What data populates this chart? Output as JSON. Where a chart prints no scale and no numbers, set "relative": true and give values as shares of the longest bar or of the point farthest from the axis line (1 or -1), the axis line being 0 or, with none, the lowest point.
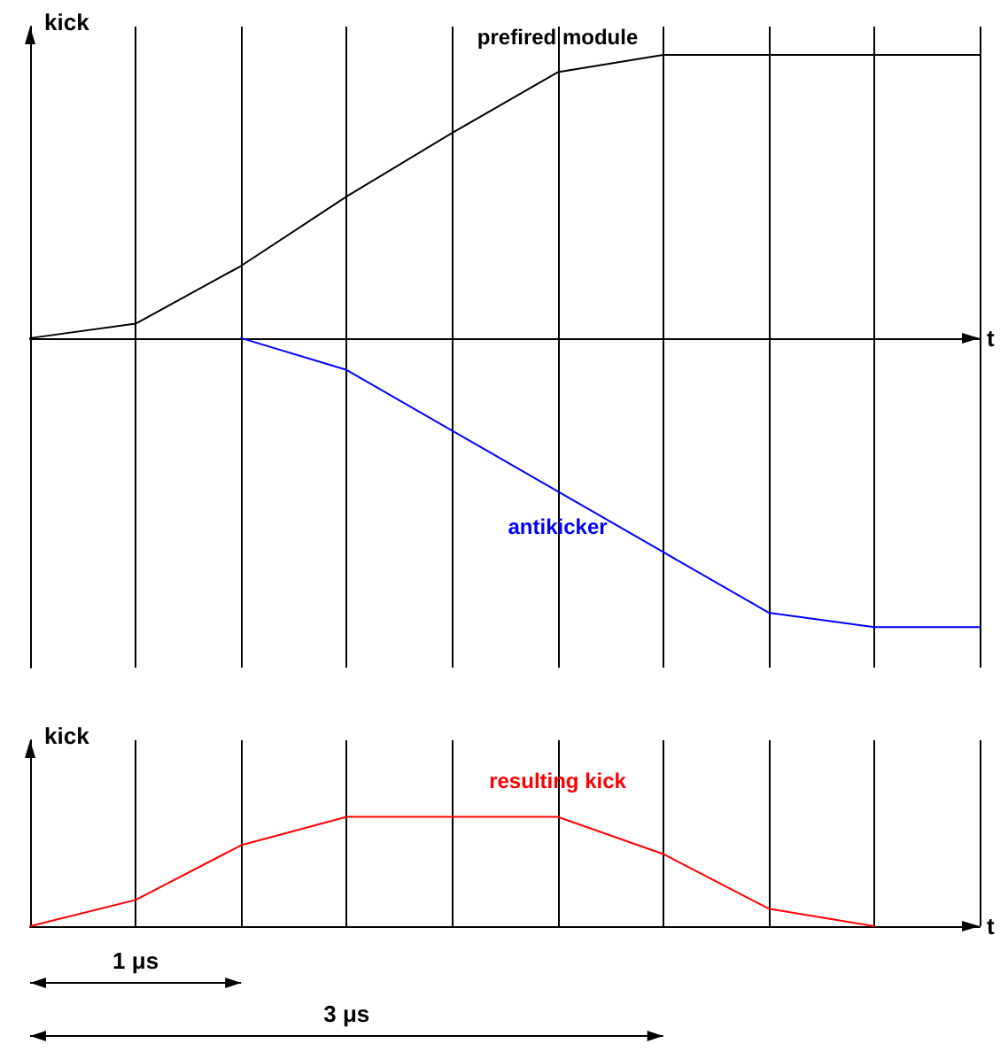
{
  "chart_data": [
    {
      "type": "line",
      "relative": true,
      "xlabel": "t",
      "ylabel": "kick",
      "categories": [
        null,
        null,
        null,
        null,
        null,
        null,
        null,
        null,
        null,
        null
      ],
      "grid": "x",
      "marker": "none",
      "line_style": "solid",
      "series": [
        {
          "name": "prefired module",
          "color": "#000000",
          "values": [
            0,
            0.05,
            0.25,
            0.49,
            0.71,
            0.92,
            0.98,
            0.98,
            0.98,
            0.98
          ]
        },
        {
          "name": "antikicker",
          "color": "#0000ff",
          "values": [
            null,
            null,
            0,
            -0.11,
            -0.32,
            -0.53,
            -0.74,
            -0.95,
            -1,
            -1
          ]
        }
      ]
    },
    {
      "type": "line",
      "relative": true,
      "xlabel": "t",
      "ylabel": "kick",
      "categories": [
        null,
        null,
        null,
        null,
        null,
        null,
        null,
        null,
        null,
        null
      ],
      "grid": "x",
      "marker": "none",
      "line_style": "solid",
      "series": [
        {
          "name": "resulting kick",
          "color": "#ff0000",
          "values": [
            0,
            0.24,
            0.74,
            1,
            1,
            1,
            0.66,
            0.16,
            0,
            null
          ]
        }
      ],
      "annotations": [
        "1 μs",
        "3 μs"
      ]
    }
  ]
}
